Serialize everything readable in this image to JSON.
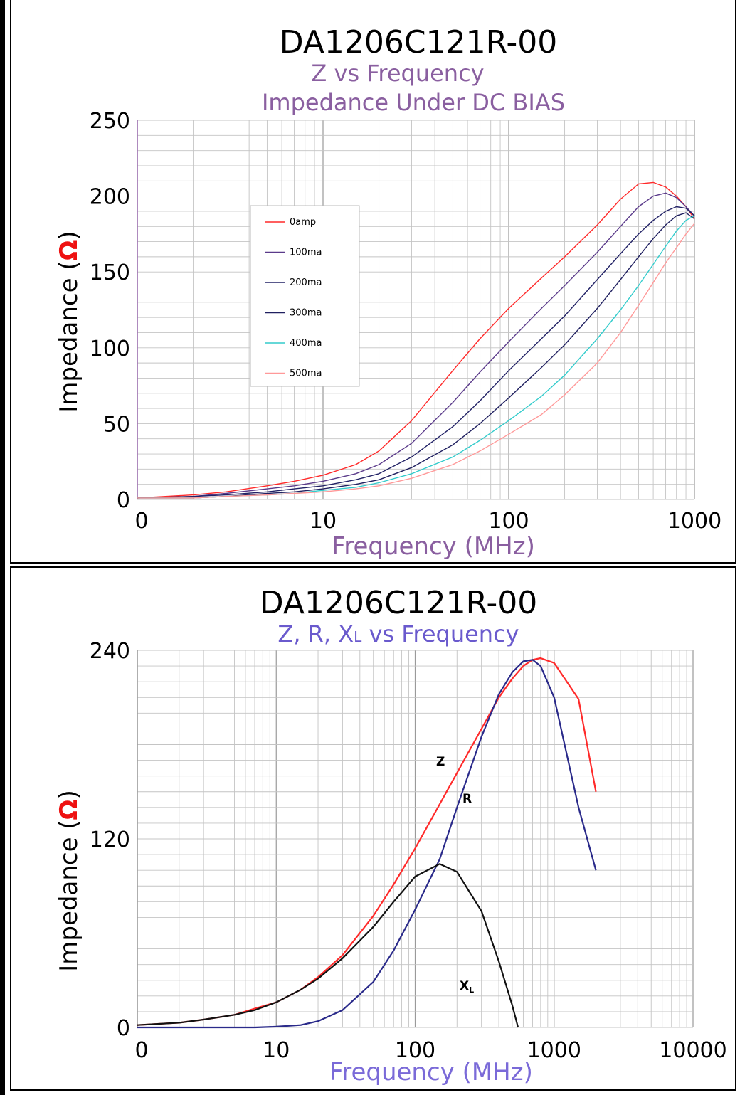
{
  "chart_data": [
    {
      "type": "line",
      "title": "DA1206C121R-00",
      "subtitle_lines": [
        "Z vs Frequency",
        "Impedance Under DC BIAS"
      ],
      "xlabel": "Frequency (MHz)",
      "ylabel_prefix": "Impedance (",
      "ylabel_symbol": "Ω",
      "ylabel_suffix": ")",
      "x_scale": "log",
      "xlim": [
        1,
        1000
      ],
      "ylim": [
        0,
        250
      ],
      "x_tick_labels": [
        "0",
        "10",
        "100",
        "1000"
      ],
      "y_tick_labels": [
        "250",
        "200",
        "150",
        "100",
        "50",
        "0"
      ],
      "grid": true,
      "legend_position": "upper-left-center",
      "colors": {
        "title": "#000000",
        "subtitle": "#8a5fa0",
        "xlabel": "#8a5fa0",
        "ylabel": "#000000",
        "omega": "#ee1111"
      },
      "series": [
        {
          "name": "0amp",
          "color": "#ff2a2a",
          "x": [
            1,
            2,
            3,
            5,
            7,
            10,
            15,
            20,
            30,
            50,
            70,
            100,
            150,
            200,
            300,
            400,
            500,
            600,
            700,
            800,
            900,
            1000
          ],
          "y": [
            1,
            3,
            5,
            9,
            12,
            16,
            23,
            32,
            52,
            85,
            106,
            126,
            146,
            160,
            181,
            198,
            208,
            209,
            206,
            200,
            193,
            185
          ]
        },
        {
          "name": "100ma",
          "color": "#5a3a8a",
          "x": [
            1,
            2,
            3,
            5,
            7,
            10,
            15,
            20,
            30,
            50,
            70,
            100,
            150,
            200,
            300,
            400,
            500,
            600,
            700,
            800,
            900,
            1000
          ],
          "y": [
            1,
            2,
            4,
            7,
            9,
            12,
            17,
            23,
            37,
            64,
            84,
            104,
            126,
            141,
            163,
            180,
            193,
            200,
            202,
            199,
            193,
            187
          ]
        },
        {
          "name": "200ma",
          "color": "#222266",
          "x": [
            1,
            2,
            3,
            5,
            7,
            10,
            15,
            20,
            30,
            50,
            70,
            100,
            150,
            200,
            300,
            400,
            500,
            600,
            700,
            800,
            900,
            1000
          ],
          "y": [
            1,
            2,
            3,
            5,
            7,
            9,
            13,
            17,
            28,
            48,
            65,
            85,
            106,
            121,
            145,
            162,
            175,
            184,
            190,
            193,
            192,
            187
          ]
        },
        {
          "name": "300ma",
          "color": "#202060",
          "x": [
            1,
            2,
            3,
            5,
            7,
            10,
            15,
            20,
            30,
            50,
            70,
            100,
            150,
            200,
            300,
            400,
            500,
            600,
            700,
            800,
            900,
            1000
          ],
          "y": [
            1,
            1,
            2,
            4,
            5,
            7,
            10,
            13,
            21,
            36,
            50,
            67,
            87,
            102,
            126,
            145,
            160,
            172,
            181,
            187,
            189,
            185
          ]
        },
        {
          "name": "400ma",
          "color": "#33cccc",
          "x": [
            1,
            2,
            3,
            5,
            7,
            10,
            15,
            20,
            30,
            50,
            70,
            100,
            150,
            200,
            300,
            400,
            500,
            600,
            700,
            800,
            900,
            1000
          ],
          "y": [
            1,
            1,
            2,
            3,
            4,
            6,
            8,
            11,
            17,
            28,
            39,
            52,
            68,
            82,
            106,
            125,
            141,
            155,
            167,
            177,
            184,
            187
          ]
        },
        {
          "name": "500ma",
          "color": "#ff9999",
          "x": [
            1,
            2,
            3,
            5,
            7,
            10,
            15,
            20,
            30,
            50,
            70,
            100,
            150,
            200,
            300,
            400,
            500,
            600,
            700,
            800,
            900,
            1000
          ],
          "y": [
            1,
            1,
            2,
            3,
            4,
            5,
            7,
            9,
            14,
            23,
            32,
            43,
            56,
            69,
            90,
            110,
            128,
            143,
            156,
            166,
            175,
            182
          ]
        }
      ]
    },
    {
      "type": "line",
      "title": "DA1206C121R-00",
      "subtitle_lines": [
        "Z, R, X",
        "L",
        " vs Frequency"
      ],
      "xlabel": "Frequency (MHz)",
      "ylabel_prefix": "Impedance (",
      "ylabel_symbol": "Ω",
      "ylabel_suffix": ")",
      "x_scale": "log",
      "xlim": [
        1,
        10000
      ],
      "ylim": [
        0,
        240
      ],
      "x_tick_labels": [
        "0",
        "10",
        "100",
        "1000",
        "10000"
      ],
      "y_tick_labels": [
        "240",
        "120",
        "0"
      ],
      "grid": true,
      "colors": {
        "title": "#000000",
        "subtitle": "#6a5acd",
        "xlabel": "#7a6ad8",
        "ylabel": "#000000",
        "omega": "#ee1111"
      },
      "series": [
        {
          "name": "Z",
          "color": "#ff2a2a",
          "x": [
            1,
            2,
            3,
            5,
            7,
            10,
            15,
            20,
            30,
            50,
            70,
            100,
            150,
            200,
            300,
            400,
            500,
            600,
            700,
            800,
            1000,
            1500,
            2000
          ],
          "y": [
            1.5,
            3,
            5,
            8,
            12,
            16,
            24,
            32,
            46,
            71,
            91,
            114,
            142,
            162,
            190,
            210,
            222,
            230,
            234,
            235,
            232,
            209,
            150
          ]
        },
        {
          "name": "R",
          "color": "#2a2a8a",
          "x": [
            1,
            2,
            3,
            5,
            7,
            10,
            15,
            20,
            30,
            50,
            70,
            100,
            150,
            200,
            300,
            400,
            500,
            600,
            700,
            800,
            1000,
            1500,
            2000
          ],
          "y": [
            0,
            0,
            0,
            0,
            0,
            0.5,
            1.5,
            4,
            11,
            29,
            49,
            75,
            107,
            140,
            185,
            212,
            226,
            233,
            234,
            230,
            210,
            140,
            100
          ]
        },
        {
          "name": "XL",
          "color": "#111111",
          "x": [
            1,
            2,
            3,
            5,
            7,
            10,
            15,
            20,
            30,
            50,
            70,
            100,
            150,
            200,
            300,
            400,
            500,
            550
          ],
          "y": [
            1.5,
            3,
            5,
            8,
            11,
            16,
            24,
            31,
            44,
            64,
            80,
            96,
            104,
            99,
            74,
            42,
            14,
            0
          ]
        }
      ],
      "curve_labels": {
        "z": "Z",
        "r": "R",
        "xl_main": "X",
        "xl_sub": "L"
      }
    }
  ]
}
